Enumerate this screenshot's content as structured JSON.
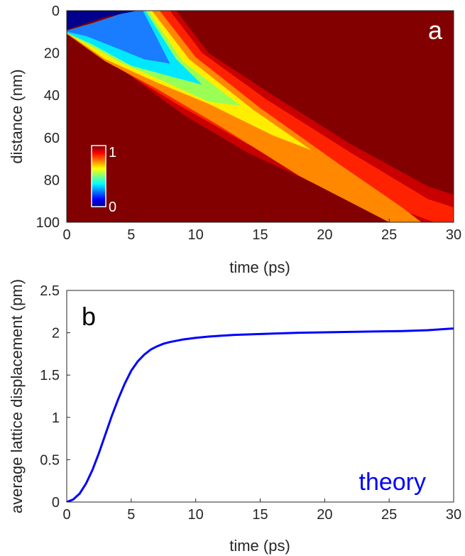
{
  "chart_data": [
    {
      "type": "heatmap",
      "panel_label": "a",
      "xlabel": "time (ps)",
      "ylabel": "distance (nm)",
      "xlim": [
        0,
        30
      ],
      "ylim": [
        0,
        100
      ],
      "y_reversed": true,
      "xticks": [
        0,
        5,
        10,
        15,
        20,
        25,
        30
      ],
      "yticks": [
        0,
        20,
        40,
        60,
        80,
        100
      ],
      "colorbar": {
        "min_label": "0",
        "max_label": "1",
        "range": [
          0,
          1
        ],
        "colormap": "jet",
        "placement": "lower-left inside"
      },
      "background_value": 1.0,
      "features": {
        "depleted_region_boundary": [
          [
            0,
            9
          ],
          [
            3,
            3
          ],
          [
            5.5,
            0
          ]
        ],
        "front_ridge": [
          [
            0,
            10
          ],
          [
            5,
            22
          ],
          [
            10,
            38
          ],
          [
            15,
            50
          ],
          [
            20,
            63
          ],
          [
            25,
            79
          ],
          [
            30,
            95
          ]
        ],
        "upper_ridge": [
          [
            5.8,
            0
          ],
          [
            10,
            28
          ],
          [
            15,
            48
          ]
        ]
      }
    },
    {
      "type": "line",
      "panel_label": "b",
      "xlabel": "time (ps)",
      "ylabel": "average lattice displacement (pm)",
      "xlim": [
        0,
        30
      ],
      "ylim": [
        0,
        2.5
      ],
      "xticks": [
        0,
        5,
        10,
        15,
        20,
        25,
        30
      ],
      "yticks": [
        "0",
        "0.5",
        "1",
        "1.5",
        "2",
        "2.5"
      ],
      "grid": false,
      "annotation": "theory",
      "series": [
        {
          "name": "theory",
          "color": "#0000ff",
          "x": [
            0,
            0.5,
            1,
            1.5,
            2,
            2.5,
            3,
            3.5,
            4,
            4.5,
            5,
            5.5,
            6,
            6.5,
            7,
            7.5,
            8,
            9,
            10,
            11,
            12,
            13,
            14,
            15,
            16,
            18,
            20,
            22,
            24,
            26,
            28,
            30
          ],
          "y": [
            0,
            0.03,
            0.1,
            0.22,
            0.38,
            0.58,
            0.8,
            1.02,
            1.22,
            1.4,
            1.55,
            1.66,
            1.74,
            1.8,
            1.84,
            1.87,
            1.89,
            1.92,
            1.94,
            1.955,
            1.965,
            1.975,
            1.98,
            1.985,
            1.99,
            2.0,
            2.005,
            2.01,
            2.015,
            2.02,
            2.03,
            2.05
          ]
        }
      ]
    }
  ]
}
